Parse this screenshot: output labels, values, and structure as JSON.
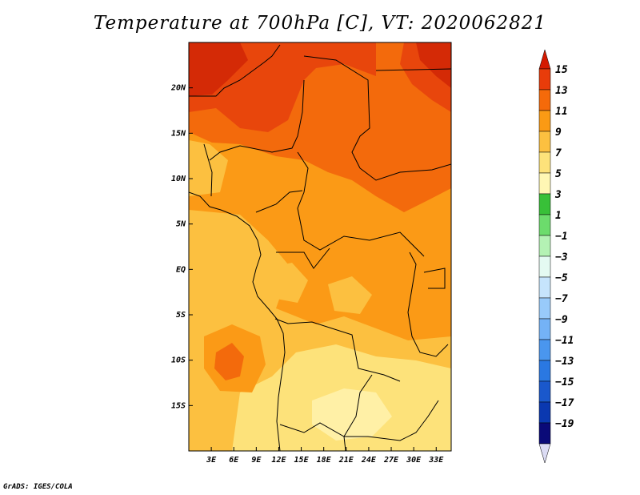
{
  "title": "Temperature at 700hPa [C], VT: 2020062821",
  "credit": "GrADS: IGES/COLA",
  "map": {
    "lon_range": [
      0,
      35
    ],
    "lat_range": [
      -20,
      25
    ],
    "lon_ticks": [
      {
        "v": 3,
        "label": "3E"
      },
      {
        "v": 6,
        "label": "6E"
      },
      {
        "v": 9,
        "label": "9E"
      },
      {
        "v": 12,
        "label": "12E"
      },
      {
        "v": 15,
        "label": "15E"
      },
      {
        "v": 18,
        "label": "18E"
      },
      {
        "v": 21,
        "label": "21E"
      },
      {
        "v": 24,
        "label": "24E"
      },
      {
        "v": 27,
        "label": "27E"
      },
      {
        "v": 30,
        "label": "30E"
      },
      {
        "v": 33,
        "label": "33E"
      }
    ],
    "lat_ticks": [
      {
        "v": 20,
        "label": "20N"
      },
      {
        "v": 15,
        "label": "15N"
      },
      {
        "v": 10,
        "label": "10N"
      },
      {
        "v": 5,
        "label": "5N"
      },
      {
        "v": 0,
        "label": "EQ"
      },
      {
        "v": -5,
        "label": "5S"
      },
      {
        "v": -10,
        "label": "10S"
      },
      {
        "v": -15,
        "label": "15S"
      }
    ]
  },
  "colorbar": {
    "levels": [
      {
        "label": "15",
        "color": "#cc1400"
      },
      {
        "label": "13",
        "color": "#e83c0a"
      },
      {
        "label": "11",
        "color": "#f56a0a"
      },
      {
        "label": "9",
        "color": "#fb9a14"
      },
      {
        "label": "7",
        "color": "#fcc040"
      },
      {
        "label": "5",
        "color": "#fde27a"
      },
      {
        "label": "3",
        "color": "#fff7b4"
      },
      {
        "label": "1",
        "color": "#38c038"
      },
      {
        "label": "−1",
        "color": "#6cdc6c"
      },
      {
        "label": "−3",
        "color": "#b4f2b4"
      },
      {
        "label": "−5",
        "color": "#e4faf2"
      },
      {
        "label": "−7",
        "color": "#c6e4fc"
      },
      {
        "label": "−9",
        "color": "#98cafa"
      },
      {
        "label": "−11",
        "color": "#74b2f6"
      },
      {
        "label": "−13",
        "color": "#4a96ee"
      },
      {
        "label": "−15",
        "color": "#2a78e2"
      },
      {
        "label": "−17",
        "color": "#1a58cc"
      },
      {
        "label": "−19",
        "color": "#0a38b0"
      }
    ],
    "top_color": "#d41a00",
    "bottom_color": "#0a0a78",
    "below_color": "#dcdcf4"
  },
  "field_colors": {
    "c15": "#d42a06",
    "c13": "#e8460c",
    "c11": "#f36a0c",
    "c9": "#fb9a16",
    "c7": "#fcc040",
    "c5": "#fde27a",
    "c3": "#fff0a6"
  }
}
